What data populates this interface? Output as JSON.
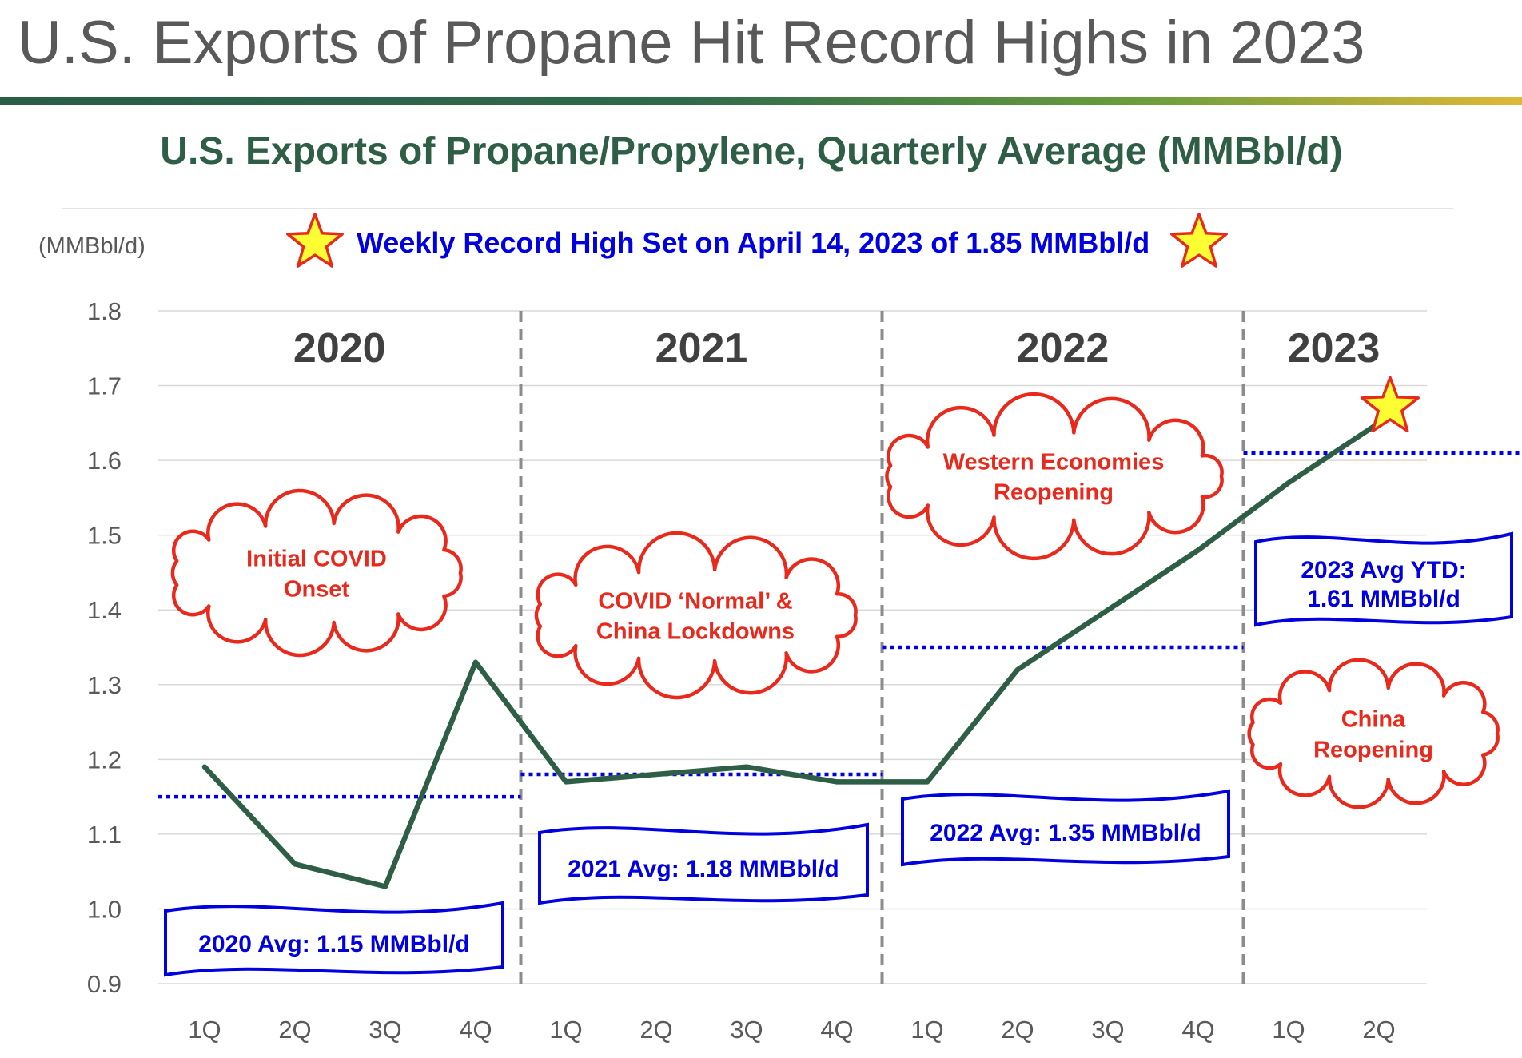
{
  "header": {
    "slide_title": "U.S. Exports of Propane Hit Record Highs in 2023",
    "chart_title": "U.S. Exports of Propane/Propylene, Quarterly Average (MMBbl/d)",
    "unit_label": "(MMBbl/d)",
    "record_banner": "Weekly Record High Set on April 14, 2023 of 1.85 MMBbl/d"
  },
  "colors": {
    "line": "#2e5e46",
    "average": "#0000e0",
    "callout": "#e8291c",
    "star_fill": "#ffff33",
    "star_stroke": "#e8291c"
  },
  "chart_data": {
    "type": "line",
    "title": "U.S. Exports of Propane/Propylene, Quarterly Average (MMBbl/d)",
    "ylabel": "(MMBbl/d)",
    "xlabel": "",
    "ylim": [
      0.9,
      1.8
    ],
    "yticks": [
      "0.9",
      "1.0",
      "1.1",
      "1.2",
      "1.3",
      "1.4",
      "1.5",
      "1.6",
      "1.7",
      "1.8"
    ],
    "grid": true,
    "categories": [
      "1Q",
      "2Q",
      "3Q",
      "4Q",
      "1Q",
      "2Q",
      "3Q",
      "4Q",
      "1Q",
      "2Q",
      "3Q",
      "4Q",
      "1Q",
      "2Q"
    ],
    "series": [
      {
        "name": "U.S. Exports of Propane/Propylene",
        "values": [
          1.19,
          1.06,
          1.03,
          1.33,
          1.17,
          1.18,
          1.19,
          1.17,
          1.17,
          1.32,
          1.4,
          1.48,
          1.57,
          1.65
        ]
      }
    ],
    "year_groups": [
      {
        "label": "2020",
        "quarters": 4
      },
      {
        "label": "2021",
        "quarters": 4
      },
      {
        "label": "2022",
        "quarters": 4
      },
      {
        "label": "2023",
        "quarters": 2
      }
    ],
    "year_averages": [
      {
        "year": "2020",
        "value": 1.15,
        "label": "2020 Avg: 1.15 MMBbl/d"
      },
      {
        "year": "2021",
        "value": 1.18,
        "label": "2021 Avg: 1.18 MMBbl/d"
      },
      {
        "year": "2022",
        "value": 1.35,
        "label": "2022 Avg: 1.35 MMBbl/d"
      },
      {
        "year": "2023",
        "value": 1.61,
        "label_lines": [
          "2023 Avg YTD:",
          "1.61 MMBbl/d"
        ]
      }
    ],
    "callouts": [
      {
        "year": "2020",
        "lines": [
          "Initial COVID",
          "Onset"
        ]
      },
      {
        "year": "2021",
        "lines": [
          "COVID ‘Normal’ &",
          "China Lockdowns"
        ]
      },
      {
        "year": "2022",
        "lines": [
          "Western Economies",
          "Reopening"
        ]
      },
      {
        "year": "2023",
        "lines": [
          "China",
          "Reopening"
        ]
      }
    ],
    "record_marker": {
      "category_index": 13,
      "value": 1.65
    }
  }
}
